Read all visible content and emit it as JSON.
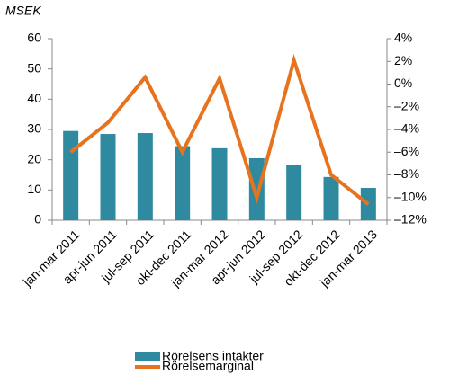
{
  "chart_data": {
    "type": "bar",
    "y_label": "MSEK",
    "categories": [
      "jan-mar 2011",
      "apr-jun 2011",
      "jul-sep 2011",
      "okt-dec 2011",
      "jan-mar 2012",
      "apr-jun 2012",
      "jul-sep 2012",
      "okt-dec 2012",
      "jan-mar 2013"
    ],
    "series": [
      {
        "name": "Rörelsens intäkter",
        "type": "bar",
        "color": "#2f8aa0",
        "values": [
          29.5,
          28.5,
          28.8,
          24.5,
          23.8,
          20.5,
          18.3,
          14.3,
          10.7
        ]
      },
      {
        "name": "Rörelsemarginal",
        "type": "line",
        "axis": "y2",
        "color": "#e8731f",
        "values": [
          -6,
          -3.4,
          0.6,
          -6,
          0.5,
          -10,
          2.1,
          -8,
          -10.6
        ]
      }
    ],
    "ylim": [
      0,
      60
    ],
    "yticks": [
      0,
      10,
      20,
      30,
      40,
      50,
      60
    ],
    "y2lim": [
      -12,
      4
    ],
    "y2ticks": [
      {
        "value": 4,
        "label": "4%"
      },
      {
        "value": 2,
        "label": "2%"
      },
      {
        "value": 0,
        "label": "0%"
      },
      {
        "value": -2,
        "label": "–2%"
      },
      {
        "value": -4,
        "label": "–4%"
      },
      {
        "value": -6,
        "label": "–6%"
      },
      {
        "value": -8,
        "label": "–8%"
      },
      {
        "value": -10,
        "label": "–10%"
      },
      {
        "value": -12,
        "label": "–12%"
      }
    ],
    "grid": false,
    "legend": "bottom"
  }
}
